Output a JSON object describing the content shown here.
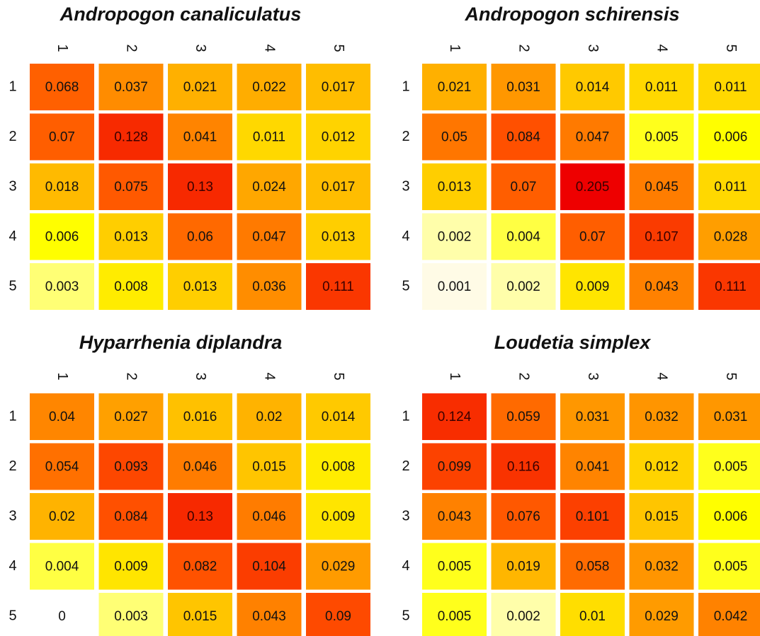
{
  "chart_data": [
    {
      "type": "heatmap",
      "title": "Andropogon canaliculatus",
      "x_categories": [
        "1",
        "2",
        "3",
        "4",
        "5"
      ],
      "y_categories": [
        "1",
        "2",
        "3",
        "4",
        "5"
      ],
      "values": [
        [
          0.068,
          0.037,
          0.021,
          0.022,
          0.017
        ],
        [
          0.07,
          0.128,
          0.041,
          0.011,
          0.012
        ],
        [
          0.018,
          0.075,
          0.13,
          0.024,
          0.017
        ],
        [
          0.006,
          0.013,
          0.06,
          0.047,
          0.013
        ],
        [
          0.003,
          0.008,
          0.013,
          0.036,
          0.111
        ]
      ],
      "colors": [
        "#fffbe6",
        "#ffff99",
        "#ffff00",
        "#ffc800",
        "#ff9000",
        "#ff5000",
        "#ee0000"
      ],
      "log_scale": true
    },
    {
      "type": "heatmap",
      "title": "Andropogon schirensis",
      "x_categories": [
        "1",
        "2",
        "3",
        "4",
        "5"
      ],
      "y_categories": [
        "1",
        "2",
        "3",
        "4",
        "5"
      ],
      "values": [
        [
          0.021,
          0.031,
          0.014,
          0.011,
          0.011
        ],
        [
          0.05,
          0.084,
          0.047,
          0.005,
          0.006
        ],
        [
          0.013,
          0.07,
          0.205,
          0.045,
          0.011
        ],
        [
          0.002,
          0.004,
          0.07,
          0.107,
          0.028
        ],
        [
          0.001,
          0.002,
          0.009,
          0.043,
          0.111
        ]
      ],
      "colors": [
        "#fffbe6",
        "#ffff99",
        "#ffff00",
        "#ffc800",
        "#ff9000",
        "#ff5000",
        "#ee0000"
      ],
      "log_scale": true
    },
    {
      "type": "heatmap",
      "title": "Hyparrhenia diplandra",
      "x_categories": [
        "1",
        "2",
        "3",
        "4",
        "5"
      ],
      "y_categories": [
        "1",
        "2",
        "3",
        "4",
        "5"
      ],
      "values": [
        [
          0.04,
          0.027,
          0.016,
          0.02,
          0.014
        ],
        [
          0.054,
          0.093,
          0.046,
          0.015,
          0.008
        ],
        [
          0.02,
          0.084,
          0.13,
          0.046,
          0.009
        ],
        [
          0.004,
          0.009,
          0.082,
          0.104,
          0.029
        ],
        [
          0,
          0.003,
          0.015,
          0.043,
          0.09
        ]
      ],
      "colors": [
        "#fffbe6",
        "#ffff99",
        "#ffff00",
        "#ffc800",
        "#ff9000",
        "#ff5000",
        "#ee0000"
      ],
      "log_scale": true
    },
    {
      "type": "heatmap",
      "title": "Loudetia simplex",
      "x_categories": [
        "1",
        "2",
        "3",
        "4",
        "5"
      ],
      "y_categories": [
        "1",
        "2",
        "3",
        "4",
        "5"
      ],
      "values": [
        [
          0.124,
          0.059,
          0.031,
          0.032,
          0.031
        ],
        [
          0.099,
          0.116,
          0.041,
          0.012,
          0.005
        ],
        [
          0.043,
          0.076,
          0.101,
          0.015,
          0.006
        ],
        [
          0.005,
          0.019,
          0.058,
          0.032,
          0.005
        ],
        [
          0.005,
          0.002,
          0.01,
          0.029,
          0.042
        ]
      ],
      "colors": [
        "#fffbe6",
        "#ffff99",
        "#ffff00",
        "#ffc800",
        "#ff9000",
        "#ff5000",
        "#ee0000"
      ],
      "log_scale": true
    }
  ]
}
